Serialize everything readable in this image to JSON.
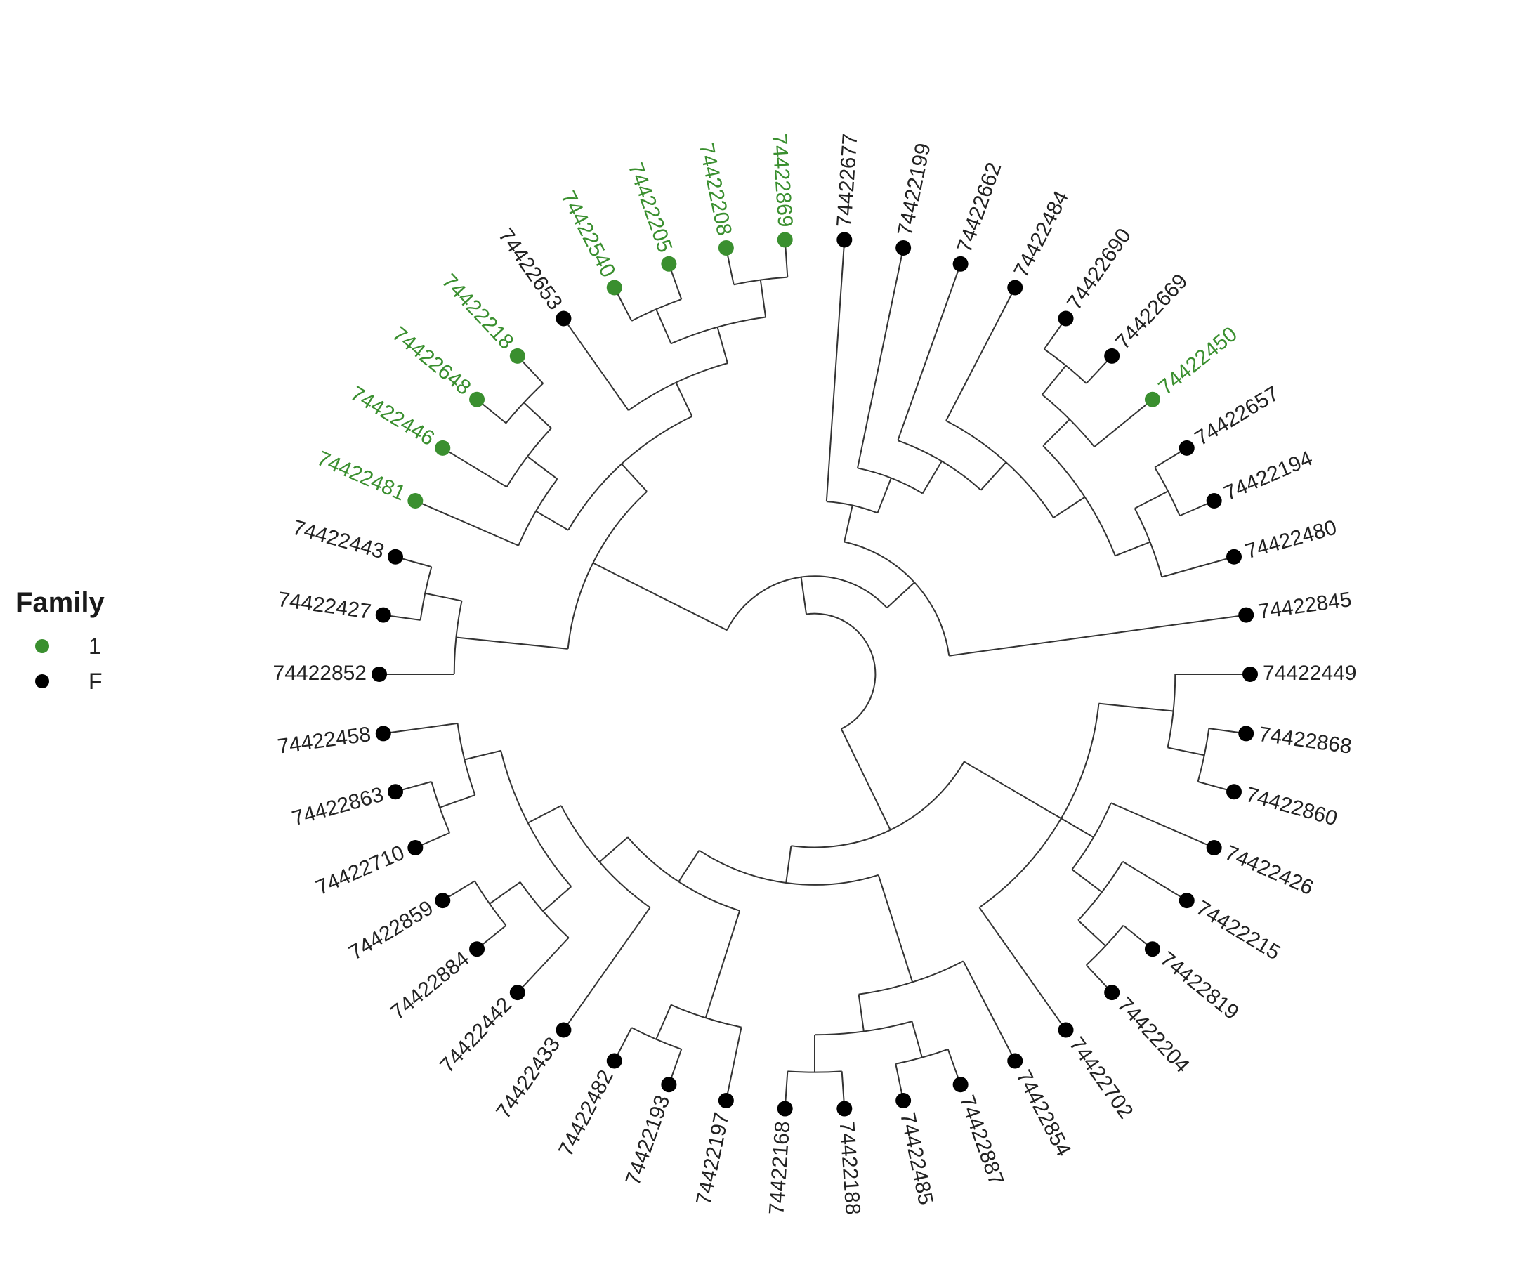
{
  "legend": {
    "title": "Family",
    "items": [
      {
        "label": "1",
        "color": "#3a8f2f"
      },
      {
        "label": "F",
        "color": "#000000"
      }
    ]
  },
  "tree": {
    "layout": "circular",
    "tips": [
      {
        "label": "74422852",
        "group": "F"
      },
      {
        "label": "74422427",
        "group": "F"
      },
      {
        "label": "74422443",
        "group": "F"
      },
      {
        "label": "74422449",
        "group": "F"
      },
      {
        "label": "74422868",
        "group": "F"
      },
      {
        "label": "74422860",
        "group": "F"
      },
      {
        "label": "74422426",
        "group": "F"
      },
      {
        "label": "74422215",
        "group": "F"
      },
      {
        "label": "74422819",
        "group": "F"
      },
      {
        "label": "74422204",
        "group": "F"
      },
      {
        "label": "74422702",
        "group": "F"
      },
      {
        "label": "74422854",
        "group": "F"
      },
      {
        "label": "74422887",
        "group": "F"
      },
      {
        "label": "74422485",
        "group": "F"
      },
      {
        "label": "74422188",
        "group": "F"
      },
      {
        "label": "74422168",
        "group": "F"
      },
      {
        "label": "74422197",
        "group": "F"
      },
      {
        "label": "74422193",
        "group": "F"
      },
      {
        "label": "74422482",
        "group": "F"
      },
      {
        "label": "74422433",
        "group": "F"
      },
      {
        "label": "74422442",
        "group": "F"
      },
      {
        "label": "74422884",
        "group": "F"
      },
      {
        "label": "74422859",
        "group": "F"
      },
      {
        "label": "74422458",
        "group": "F"
      },
      {
        "label": "74422863",
        "group": "F"
      },
      {
        "label": "74422710",
        "group": "F"
      },
      {
        "label": "74422845",
        "group": "F"
      },
      {
        "label": "74422480",
        "group": "F"
      },
      {
        "label": "74422194",
        "group": "F"
      },
      {
        "label": "74422657",
        "group": "F"
      },
      {
        "label": "74422450",
        "group": "1"
      },
      {
        "label": "74422669",
        "group": "F"
      },
      {
        "label": "74422690",
        "group": "F"
      },
      {
        "label": "74422484",
        "group": "F"
      },
      {
        "label": "74422662",
        "group": "F"
      },
      {
        "label": "74422199",
        "group": "F"
      },
      {
        "label": "74422677",
        "group": "F"
      },
      {
        "label": "74422869",
        "group": "1"
      },
      {
        "label": "74422208",
        "group": "1"
      },
      {
        "label": "74422205",
        "group": "1"
      },
      {
        "label": "74422540",
        "group": "1"
      },
      {
        "label": "74422653",
        "group": "F"
      },
      {
        "label": "74422218",
        "group": "1"
      },
      {
        "label": "74422648",
        "group": "1"
      },
      {
        "label": "74422446",
        "group": "1"
      },
      {
        "label": "74422481",
        "group": "1"
      }
    ],
    "newick": "((((74422852,(74422427,74422443)),((74422481,(74422446,(74422648,74422218))),(74422653,((74422540,74422205),(74422208,74422869))))),((74422677,(74422199,(74422662,(74422484,(((74422690,74422669),74422450),((74422657,74422194),74422480)))))),74422845)),(((74422449,(74422868,74422860)),(74422426,(74422215,(74422819,74422204))),74422702),((74422854,((74422887,74422485),(74422188,74422168))),((74422197,(74422193,74422482)),(74422433,((74422442,(74422884,74422859)),((74422710,74422863),74422458)))))));"
  }
}
